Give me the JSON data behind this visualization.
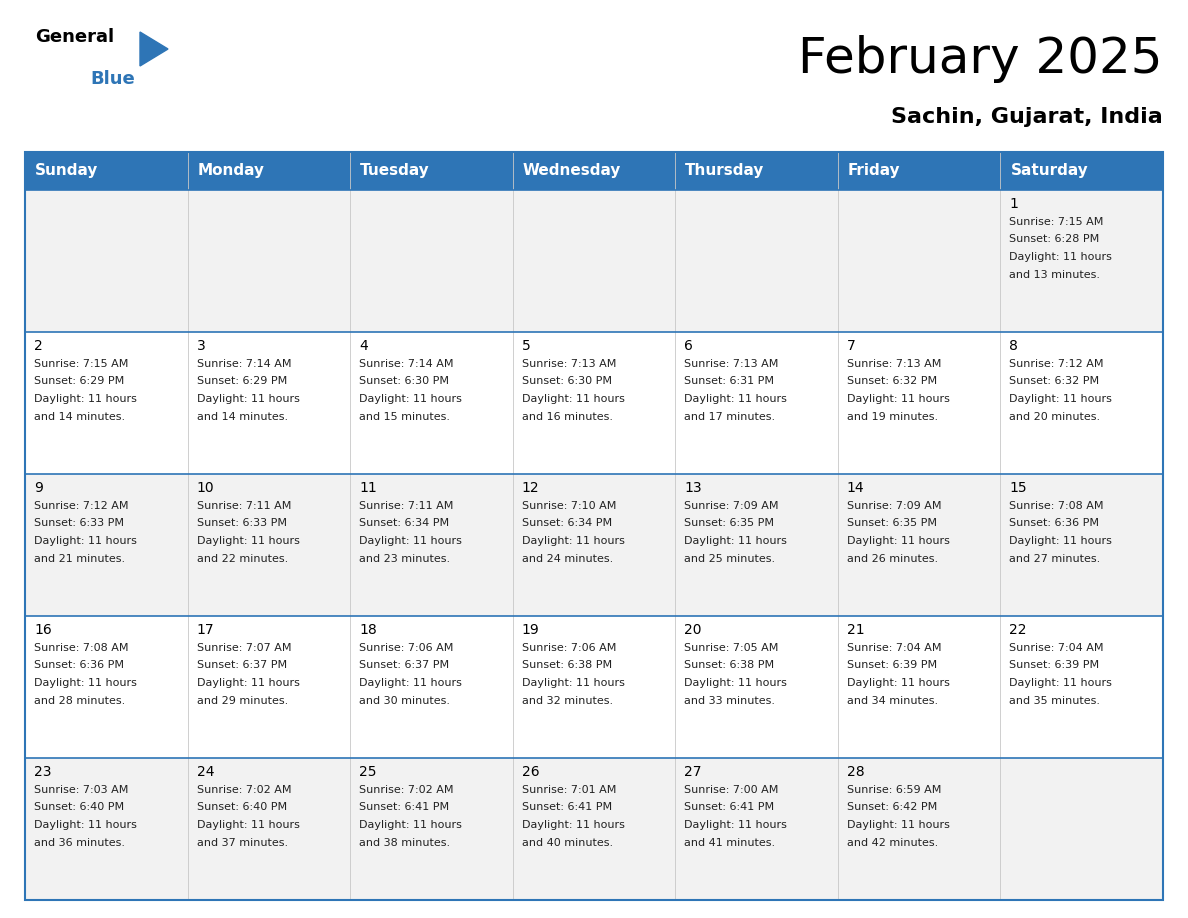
{
  "title": "February 2025",
  "subtitle": "Sachin, Gujarat, India",
  "header_bg": "#2E75B6",
  "header_text_color": "#FFFFFF",
  "cell_bg_light": "#F2F2F2",
  "cell_bg_white": "#FFFFFF",
  "border_color": "#2E75B6",
  "text_color": "#222222",
  "day_headers": [
    "Sunday",
    "Monday",
    "Tuesday",
    "Wednesday",
    "Thursday",
    "Friday",
    "Saturday"
  ],
  "calendar_data": [
    [
      null,
      null,
      null,
      null,
      null,
      null,
      {
        "day": 1,
        "sunrise": "7:15 AM",
        "sunset": "6:28 PM",
        "daylight": "11 hours\nand 13 minutes."
      }
    ],
    [
      {
        "day": 2,
        "sunrise": "7:15 AM",
        "sunset": "6:29 PM",
        "daylight": "11 hours\nand 14 minutes."
      },
      {
        "day": 3,
        "sunrise": "7:14 AM",
        "sunset": "6:29 PM",
        "daylight": "11 hours\nand 14 minutes."
      },
      {
        "day": 4,
        "sunrise": "7:14 AM",
        "sunset": "6:30 PM",
        "daylight": "11 hours\nand 15 minutes."
      },
      {
        "day": 5,
        "sunrise": "7:13 AM",
        "sunset": "6:30 PM",
        "daylight": "11 hours\nand 16 minutes."
      },
      {
        "day": 6,
        "sunrise": "7:13 AM",
        "sunset": "6:31 PM",
        "daylight": "11 hours\nand 17 minutes."
      },
      {
        "day": 7,
        "sunrise": "7:13 AM",
        "sunset": "6:32 PM",
        "daylight": "11 hours\nand 19 minutes."
      },
      {
        "day": 8,
        "sunrise": "7:12 AM",
        "sunset": "6:32 PM",
        "daylight": "11 hours\nand 20 minutes."
      }
    ],
    [
      {
        "day": 9,
        "sunrise": "7:12 AM",
        "sunset": "6:33 PM",
        "daylight": "11 hours\nand 21 minutes."
      },
      {
        "day": 10,
        "sunrise": "7:11 AM",
        "sunset": "6:33 PM",
        "daylight": "11 hours\nand 22 minutes."
      },
      {
        "day": 11,
        "sunrise": "7:11 AM",
        "sunset": "6:34 PM",
        "daylight": "11 hours\nand 23 minutes."
      },
      {
        "day": 12,
        "sunrise": "7:10 AM",
        "sunset": "6:34 PM",
        "daylight": "11 hours\nand 24 minutes."
      },
      {
        "day": 13,
        "sunrise": "7:09 AM",
        "sunset": "6:35 PM",
        "daylight": "11 hours\nand 25 minutes."
      },
      {
        "day": 14,
        "sunrise": "7:09 AM",
        "sunset": "6:35 PM",
        "daylight": "11 hours\nand 26 minutes."
      },
      {
        "day": 15,
        "sunrise": "7:08 AM",
        "sunset": "6:36 PM",
        "daylight": "11 hours\nand 27 minutes."
      }
    ],
    [
      {
        "day": 16,
        "sunrise": "7:08 AM",
        "sunset": "6:36 PM",
        "daylight": "11 hours\nand 28 minutes."
      },
      {
        "day": 17,
        "sunrise": "7:07 AM",
        "sunset": "6:37 PM",
        "daylight": "11 hours\nand 29 minutes."
      },
      {
        "day": 18,
        "sunrise": "7:06 AM",
        "sunset": "6:37 PM",
        "daylight": "11 hours\nand 30 minutes."
      },
      {
        "day": 19,
        "sunrise": "7:06 AM",
        "sunset": "6:38 PM",
        "daylight": "11 hours\nand 32 minutes."
      },
      {
        "day": 20,
        "sunrise": "7:05 AM",
        "sunset": "6:38 PM",
        "daylight": "11 hours\nand 33 minutes."
      },
      {
        "day": 21,
        "sunrise": "7:04 AM",
        "sunset": "6:39 PM",
        "daylight": "11 hours\nand 34 minutes."
      },
      {
        "day": 22,
        "sunrise": "7:04 AM",
        "sunset": "6:39 PM",
        "daylight": "11 hours\nand 35 minutes."
      }
    ],
    [
      {
        "day": 23,
        "sunrise": "7:03 AM",
        "sunset": "6:40 PM",
        "daylight": "11 hours\nand 36 minutes."
      },
      {
        "day": 24,
        "sunrise": "7:02 AM",
        "sunset": "6:40 PM",
        "daylight": "11 hours\nand 37 minutes."
      },
      {
        "day": 25,
        "sunrise": "7:02 AM",
        "sunset": "6:41 PM",
        "daylight": "11 hours\nand 38 minutes."
      },
      {
        "day": 26,
        "sunrise": "7:01 AM",
        "sunset": "6:41 PM",
        "daylight": "11 hours\nand 40 minutes."
      },
      {
        "day": 27,
        "sunrise": "7:00 AM",
        "sunset": "6:41 PM",
        "daylight": "11 hours\nand 41 minutes."
      },
      {
        "day": 28,
        "sunrise": "6:59 AM",
        "sunset": "6:42 PM",
        "daylight": "11 hours\nand 42 minutes."
      },
      null
    ]
  ],
  "logo_triangle_color": "#2E75B6",
  "title_fontsize": 36,
  "subtitle_fontsize": 16,
  "header_fontsize": 11,
  "day_num_fontsize": 10,
  "cell_text_fontsize": 8
}
